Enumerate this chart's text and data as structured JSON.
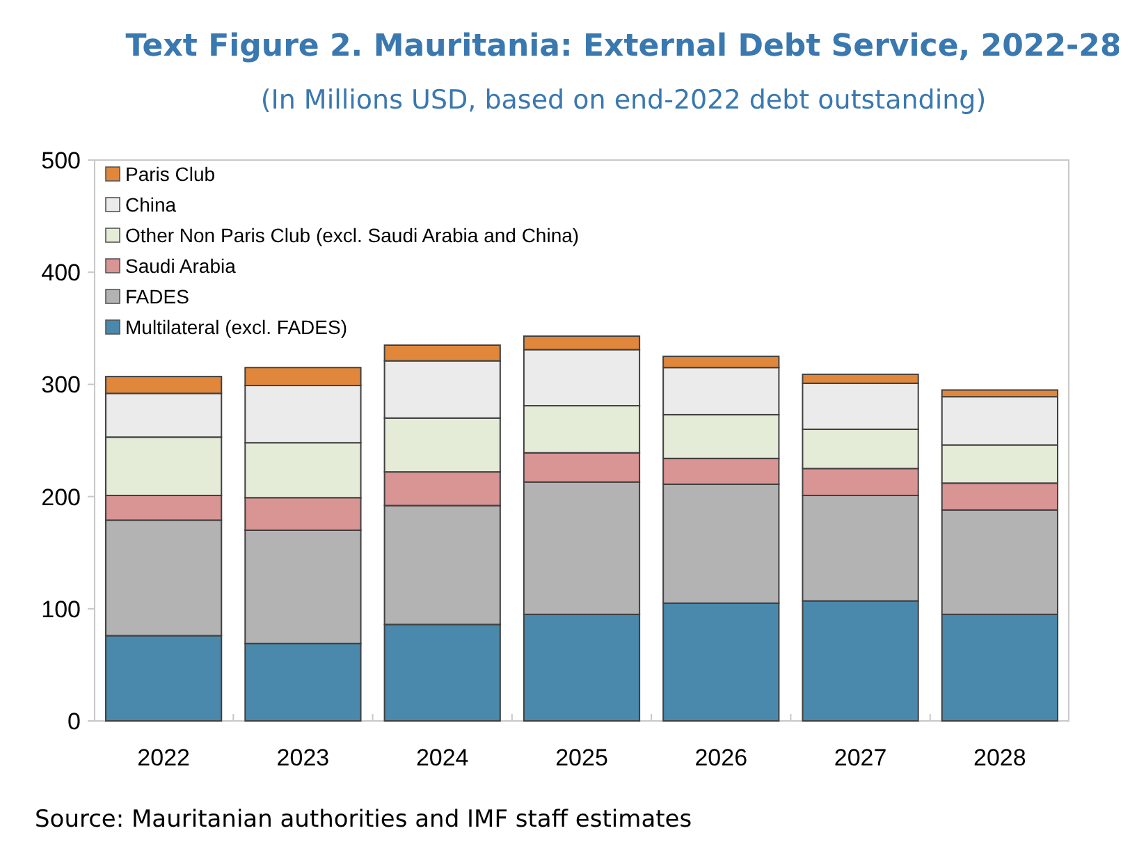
{
  "chart_data": {
    "type": "bar",
    "title": "Text Figure 2. Mauritania: External Debt Service, 2022-28",
    "subtitle": "(In Millions USD, based on end-2022 debt outstanding)",
    "categories": [
      "2022",
      "2023",
      "2024",
      "2025",
      "2026",
      "2027",
      "2028"
    ],
    "stacked": true,
    "series": [
      {
        "name": "Multilateral (excl. FADES)",
        "color": "#4a89ab",
        "values": [
          76,
          69,
          86,
          95,
          105,
          107,
          95
        ]
      },
      {
        "name": "FADES",
        "color": "#b3b3b3",
        "values": [
          103,
          101,
          106,
          118,
          106,
          94,
          93
        ]
      },
      {
        "name": "Saudi Arabia",
        "color": "#d99594",
        "values": [
          22,
          29,
          30,
          26,
          23,
          24,
          24
        ]
      },
      {
        "name": "Other Non Paris Club (excl. Saudi Arabia and China)",
        "color": "#e4ecd8",
        "values": [
          52,
          49,
          48,
          42,
          39,
          35,
          34
        ]
      },
      {
        "name": "China",
        "color": "#ebebeb",
        "values": [
          39,
          51,
          51,
          50,
          42,
          41,
          43
        ]
      },
      {
        "name": "Paris Club",
        "color": "#e0873c",
        "values": [
          15,
          16,
          14,
          12,
          10,
          8,
          6
        ]
      }
    ],
    "ylim": [
      0,
      500
    ],
    "yticks": [
      0,
      100,
      200,
      300,
      400,
      500
    ],
    "grid": false,
    "legend": "top left",
    "annotations": [
      "Source: Mauritanian authorities and IMF staff estimates"
    ]
  }
}
